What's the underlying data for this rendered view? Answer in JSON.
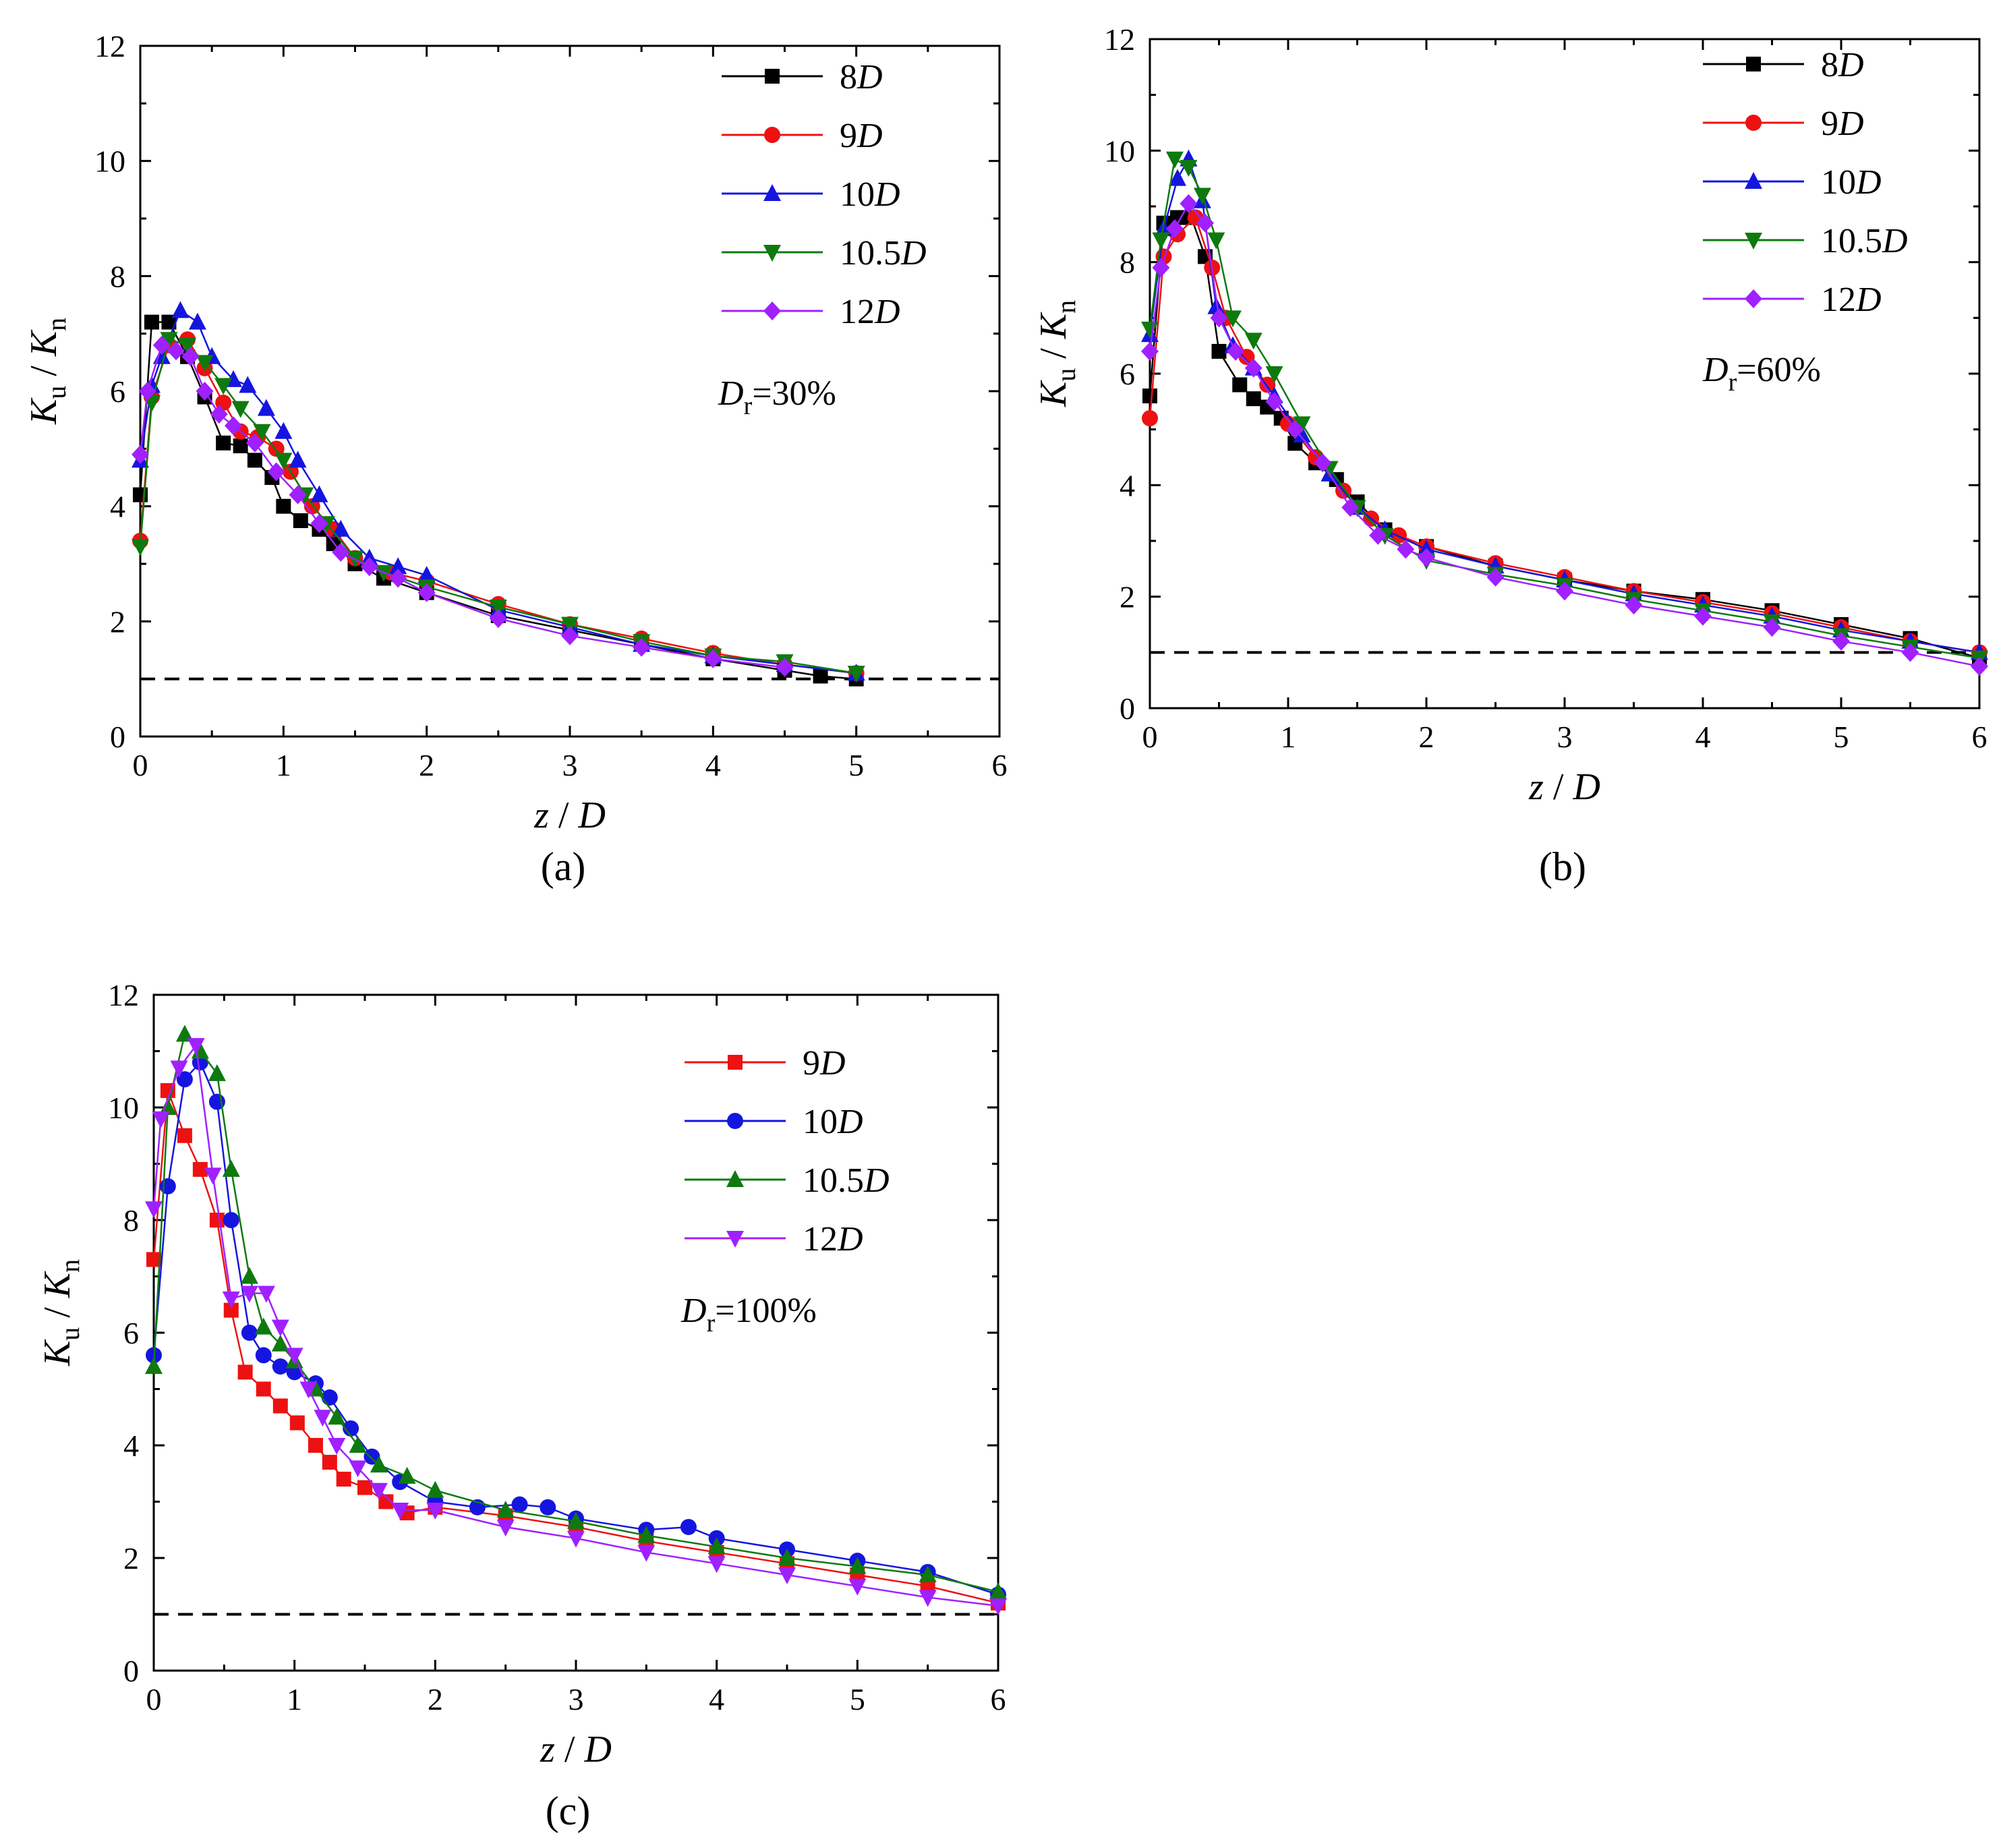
{
  "colors": {
    "8D": "#000000",
    "9D": "#ee1111",
    "10D": "#1515e0",
    "10.5D": "#0e7a0e",
    "12D": "#a020ff",
    "reference_line": "#000000"
  },
  "chart_data": [
    {
      "type": "line",
      "panel_label": "(a)",
      "annotation": {
        "symbol": "D",
        "subscript": "r",
        "value": "=30%"
      },
      "xlabel": {
        "base": "z",
        "sep": " / ",
        "denom": "D"
      },
      "ylabel": {
        "base": "K",
        "sub": "u",
        "sep": " / ",
        "denom": "K",
        "denom_sub": "n"
      },
      "xlim": [
        0,
        6
      ],
      "ylim": [
        0,
        12
      ],
      "xticks": [
        "0",
        "1",
        "2",
        "3",
        "4",
        "5",
        "6"
      ],
      "yticks": [
        "0",
        "2",
        "4",
        "6",
        "8",
        "10",
        "12"
      ],
      "reference_line": {
        "y": 1,
        "style": "dashed"
      },
      "legend_position": "top-right",
      "series": [
        {
          "name": "8",
          "italic": "D",
          "key": "8D",
          "marker": "square",
          "x": [
            0.0,
            0.08,
            0.2,
            0.33,
            0.45,
            0.58,
            0.7,
            0.8,
            0.92,
            1.0,
            1.12,
            1.25,
            1.35,
            1.5,
            1.7,
            2.0,
            2.5,
            3.0,
            3.5,
            4.0,
            4.5,
            4.75,
            5.0
          ],
          "y": [
            4.2,
            7.2,
            7.2,
            6.6,
            5.9,
            5.1,
            5.05,
            4.8,
            4.5,
            4.0,
            3.75,
            3.6,
            3.35,
            3.0,
            2.75,
            2.5,
            2.1,
            1.85,
            1.6,
            1.35,
            1.15,
            1.05,
            1.0
          ]
        },
        {
          "name": "9",
          "italic": "D",
          "key": "9D",
          "marker": "circle",
          "x": [
            0.0,
            0.08,
            0.2,
            0.33,
            0.45,
            0.58,
            0.7,
            0.82,
            0.95,
            1.05,
            1.2,
            1.35,
            1.5,
            1.75,
            2.0,
            2.5,
            3.0,
            3.5,
            4.0,
            4.5,
            5.0
          ],
          "y": [
            3.4,
            5.9,
            6.8,
            6.9,
            6.4,
            5.8,
            5.3,
            5.2,
            5.0,
            4.6,
            4.0,
            3.6,
            3.1,
            2.85,
            2.7,
            2.3,
            1.95,
            1.7,
            1.45,
            1.25,
            1.1
          ]
        },
        {
          "name": "10",
          "italic": "D",
          "key": "10D",
          "marker": "triangle-up",
          "x": [
            0.0,
            0.08,
            0.15,
            0.28,
            0.4,
            0.5,
            0.65,
            0.75,
            0.88,
            1.0,
            1.1,
            1.25,
            1.4,
            1.6,
            1.8,
            2.0,
            2.5,
            3.0,
            3.5,
            4.0,
            4.5,
            5.0
          ],
          "y": [
            4.8,
            6.1,
            6.6,
            7.4,
            7.2,
            6.6,
            6.2,
            6.1,
            5.7,
            5.3,
            4.8,
            4.2,
            3.6,
            3.1,
            2.95,
            2.8,
            2.2,
            1.9,
            1.6,
            1.4,
            1.25,
            1.1
          ]
        },
        {
          "name": "10.5",
          "italic": "D",
          "key": "10.5D",
          "marker": "triangle-down",
          "x": [
            0.0,
            0.08,
            0.2,
            0.33,
            0.45,
            0.58,
            0.7,
            0.85,
            1.0,
            1.15,
            1.3,
            1.5,
            1.7,
            2.0,
            2.5,
            3.0,
            3.5,
            4.0,
            4.5,
            5.0
          ],
          "y": [
            3.3,
            5.8,
            6.9,
            6.8,
            6.5,
            6.1,
            5.7,
            5.3,
            4.8,
            4.2,
            3.7,
            3.1,
            2.85,
            2.6,
            2.25,
            1.95,
            1.65,
            1.4,
            1.3,
            1.1
          ]
        },
        {
          "name": "12",
          "italic": "D",
          "key": "12D",
          "marker": "diamond",
          "x": [
            0.0,
            0.05,
            0.15,
            0.25,
            0.35,
            0.45,
            0.55,
            0.65,
            0.8,
            0.95,
            1.1,
            1.25,
            1.4,
            1.6,
            1.8,
            2.0,
            2.5,
            3.0,
            3.5,
            4.0,
            4.5
          ],
          "y": [
            4.9,
            6.0,
            6.8,
            6.7,
            6.6,
            6.0,
            5.6,
            5.4,
            5.1,
            4.6,
            4.2,
            3.7,
            3.2,
            2.95,
            2.75,
            2.5,
            2.05,
            1.75,
            1.55,
            1.35,
            1.2
          ]
        }
      ]
    },
    {
      "type": "line",
      "panel_label": "(b)",
      "annotation": {
        "symbol": "D",
        "subscript": "r",
        "value": "=60%"
      },
      "xlabel": {
        "base": "z",
        "sep": " / ",
        "denom": "D"
      },
      "ylabel": {
        "base": "K",
        "sub": "u",
        "sep": " / ",
        "denom": "K",
        "denom_sub": "n"
      },
      "xlim": [
        0,
        6
      ],
      "ylim": [
        0,
        12
      ],
      "xticks": [
        "0",
        "1",
        "2",
        "3",
        "4",
        "5",
        "6"
      ],
      "yticks": [
        "0",
        "2",
        "4",
        "6",
        "8",
        "10",
        "12"
      ],
      "reference_line": {
        "y": 1,
        "style": "dashed"
      },
      "legend_position": "top-right",
      "series": [
        {
          "name": "8",
          "italic": "D",
          "key": "8D",
          "marker": "square",
          "x": [
            0.0,
            0.1,
            0.2,
            0.3,
            0.4,
            0.5,
            0.65,
            0.75,
            0.85,
            0.95,
            1.05,
            1.2,
            1.35,
            1.5,
            1.7,
            2.0,
            2.5,
            3.0,
            3.5,
            4.0,
            4.5,
            5.0,
            5.5,
            6.0
          ],
          "y": [
            5.6,
            8.7,
            8.8,
            8.8,
            8.1,
            6.4,
            5.8,
            5.55,
            5.4,
            5.2,
            4.75,
            4.4,
            4.1,
            3.7,
            3.2,
            2.9,
            2.55,
            2.3,
            2.1,
            1.95,
            1.75,
            1.5,
            1.25,
            0.9
          ]
        },
        {
          "name": "9",
          "italic": "D",
          "key": "9D",
          "marker": "circle",
          "x": [
            0.0,
            0.1,
            0.2,
            0.33,
            0.45,
            0.55,
            0.7,
            0.85,
            1.0,
            1.2,
            1.4,
            1.6,
            1.8,
            2.0,
            2.5,
            3.0,
            3.5,
            4.0,
            4.5,
            5.0,
            5.5,
            6.0
          ],
          "y": [
            5.2,
            8.1,
            8.5,
            8.8,
            7.9,
            7.0,
            6.3,
            5.8,
            5.1,
            4.5,
            3.9,
            3.4,
            3.1,
            2.9,
            2.6,
            2.35,
            2.1,
            1.9,
            1.7,
            1.45,
            1.2,
            1.0
          ]
        },
        {
          "name": "10",
          "italic": "D",
          "key": "10D",
          "marker": "triangle-up",
          "x": [
            0.0,
            0.1,
            0.2,
            0.28,
            0.38,
            0.48,
            0.6,
            0.75,
            0.9,
            1.1,
            1.3,
            1.5,
            1.7,
            2.0,
            2.5,
            3.0,
            3.5,
            4.0,
            4.5,
            5.0,
            5.5,
            6.0
          ],
          "y": [
            6.7,
            8.6,
            9.5,
            9.85,
            9.1,
            7.2,
            6.5,
            6.1,
            5.6,
            4.9,
            4.2,
            3.6,
            3.2,
            2.85,
            2.55,
            2.3,
            2.05,
            1.85,
            1.65,
            1.4,
            1.2,
            1.0
          ]
        },
        {
          "name": "10.5",
          "italic": "D",
          "key": "10.5D",
          "marker": "triangle-down",
          "x": [
            0.0,
            0.08,
            0.18,
            0.28,
            0.38,
            0.48,
            0.6,
            0.75,
            0.9,
            1.1,
            1.3,
            1.5,
            1.7,
            2.0,
            2.5,
            3.0,
            3.5,
            4.0,
            4.5,
            5.0,
            5.5,
            6.0
          ],
          "y": [
            6.8,
            8.4,
            9.85,
            9.7,
            9.2,
            8.4,
            7.0,
            6.6,
            6.0,
            5.1,
            4.3,
            3.6,
            3.1,
            2.65,
            2.4,
            2.2,
            1.95,
            1.75,
            1.55,
            1.3,
            1.1,
            0.9
          ]
        },
        {
          "name": "12",
          "italic": "D",
          "key": "12D",
          "marker": "diamond",
          "x": [
            0.0,
            0.08,
            0.18,
            0.28,
            0.4,
            0.5,
            0.62,
            0.75,
            0.9,
            1.05,
            1.25,
            1.45,
            1.65,
            1.85,
            2.0,
            2.5,
            3.0,
            3.5,
            4.0,
            4.5,
            5.0,
            5.5,
            6.0
          ],
          "y": [
            6.4,
            7.9,
            8.6,
            9.05,
            8.7,
            7.0,
            6.4,
            6.1,
            5.5,
            5.0,
            4.4,
            3.6,
            3.1,
            2.85,
            2.7,
            2.35,
            2.1,
            1.85,
            1.65,
            1.45,
            1.2,
            1.0,
            0.75
          ]
        }
      ]
    },
    {
      "type": "line",
      "panel_label": "(c)",
      "annotation": {
        "symbol": "D",
        "subscript": "r",
        "value": "=100%"
      },
      "xlabel": {
        "base": "z",
        "sep": " / ",
        "denom": "D"
      },
      "ylabel": {
        "base": "K",
        "sub": "u",
        "sep": " / ",
        "denom": "K",
        "denom_sub": "n"
      },
      "xlim": [
        0,
        6
      ],
      "ylim": [
        0,
        12
      ],
      "xticks": [
        "0",
        "1",
        "2",
        "3",
        "4",
        "5",
        "6"
      ],
      "yticks": [
        "0",
        "2",
        "4",
        "6",
        "8",
        "10",
        "12"
      ],
      "reference_line": {
        "y": 1,
        "style": "dashed"
      },
      "legend_position": "top-right",
      "series": [
        {
          "name": "9",
          "italic": "D",
          "key": "9D",
          "marker": "square",
          "x": [
            0.0,
            0.1,
            0.22,
            0.33,
            0.45,
            0.55,
            0.65,
            0.78,
            0.9,
            1.02,
            1.15,
            1.25,
            1.35,
            1.5,
            1.65,
            1.8,
            2.0,
            2.5,
            3.0,
            3.5,
            4.0,
            4.5,
            5.0,
            5.5,
            6.0
          ],
          "y": [
            7.3,
            10.3,
            9.5,
            8.9,
            8.0,
            6.4,
            5.3,
            5.0,
            4.7,
            4.4,
            4.0,
            3.7,
            3.4,
            3.25,
            3.0,
            2.8,
            2.9,
            2.75,
            2.55,
            2.3,
            2.1,
            1.9,
            1.7,
            1.5,
            1.2
          ]
        },
        {
          "name": "10",
          "italic": "D",
          "key": "10D",
          "marker": "circle",
          "x": [
            0.0,
            0.1,
            0.22,
            0.33,
            0.45,
            0.55,
            0.68,
            0.78,
            0.9,
            1.0,
            1.15,
            1.25,
            1.4,
            1.55,
            1.75,
            2.0,
            2.3,
            2.6,
            2.8,
            3.0,
            3.5,
            3.8,
            4.0,
            4.5,
            5.0,
            5.5,
            6.0
          ],
          "y": [
            5.6,
            8.6,
            10.5,
            10.8,
            10.1,
            8.0,
            6.0,
            5.6,
            5.4,
            5.3,
            5.1,
            4.85,
            4.3,
            3.8,
            3.35,
            3.0,
            2.9,
            2.95,
            2.9,
            2.7,
            2.5,
            2.55,
            2.35,
            2.15,
            1.95,
            1.75,
            1.35
          ]
        },
        {
          "name": "10.5",
          "italic": "D",
          "key": "10.5D",
          "marker": "triangle-up",
          "x": [
            0.0,
            0.1,
            0.22,
            0.33,
            0.45,
            0.55,
            0.68,
            0.78,
            0.9,
            1.0,
            1.15,
            1.3,
            1.45,
            1.6,
            1.8,
            2.0,
            2.5,
            3.0,
            3.5,
            4.0,
            4.5,
            5.0,
            5.5,
            6.0
          ],
          "y": [
            5.4,
            10.0,
            11.3,
            11.0,
            10.6,
            8.9,
            7.0,
            6.1,
            5.8,
            5.5,
            5.0,
            4.5,
            4.0,
            3.65,
            3.45,
            3.2,
            2.85,
            2.65,
            2.4,
            2.2,
            2.0,
            1.85,
            1.7,
            1.4
          ]
        },
        {
          "name": "12",
          "italic": "D",
          "key": "12D",
          "marker": "triangle-down",
          "x": [
            0.0,
            0.05,
            0.18,
            0.3,
            0.42,
            0.55,
            0.68,
            0.8,
            0.9,
            1.0,
            1.1,
            1.2,
            1.3,
            1.45,
            1.6,
            1.75,
            2.0,
            2.5,
            3.0,
            3.5,
            4.0,
            4.5,
            5.0,
            5.5,
            6.0
          ],
          "y": [
            8.2,
            9.8,
            10.7,
            11.1,
            8.8,
            6.6,
            6.7,
            6.7,
            6.1,
            5.6,
            5.0,
            4.5,
            4.0,
            3.6,
            3.2,
            2.85,
            2.85,
            2.55,
            2.35,
            2.1,
            1.9,
            1.7,
            1.5,
            1.3,
            1.15
          ]
        }
      ]
    }
  ]
}
